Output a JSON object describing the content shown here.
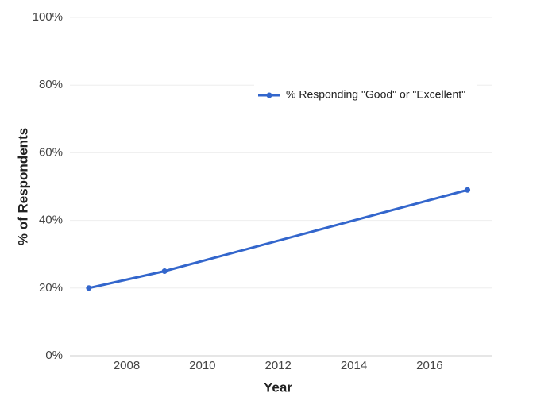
{
  "chart_data": {
    "type": "line",
    "x_label": "Year",
    "y_label": "% of Respondents",
    "x": [
      2007,
      2009,
      2017
    ],
    "series": [
      {
        "name": "% Responding \"Good\" or \"Excellent\"",
        "color": "#3366cc",
        "values": [
          20,
          25,
          49
        ]
      }
    ],
    "xlim": [
      2006.5,
      2017.66
    ],
    "ylim": [
      0,
      100
    ],
    "xticks": [
      2008,
      2010,
      2012,
      2014,
      2016
    ],
    "yticks": [
      {
        "value": 0,
        "label": "0%"
      },
      {
        "value": 20,
        "label": "20%"
      },
      {
        "value": 40,
        "label": "40%"
      },
      {
        "value": 60,
        "label": "60%"
      },
      {
        "value": 80,
        "label": "80%"
      },
      {
        "value": 100,
        "label": "100%"
      }
    ],
    "grid": true,
    "legend": "top-right"
  }
}
